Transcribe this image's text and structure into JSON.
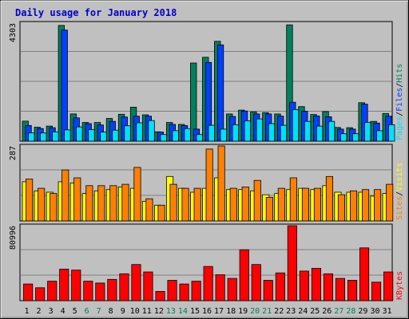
{
  "title": "Daily usage for January 2018",
  "colors": {
    "background": "#C0C0C0",
    "title": "#0000CC",
    "hits": "#00805C",
    "files": "#0040FF",
    "pages": "#00E0FF",
    "visits": "#FFFF00",
    "sites": "#FF8000",
    "kbytes": "#FF0000",
    "weekend_label": "#00805C",
    "grid": "#808080"
  },
  "chart_data": [
    {
      "type": "bar",
      "name": "hits-files-pages",
      "ymax_label": "4303",
      "ylim": [
        0,
        4303
      ],
      "right_label": [
        "Pages",
        "Files",
        "Hits"
      ],
      "days": [
        "1",
        "2",
        "3",
        "4",
        "5",
        "6",
        "7",
        "8",
        "9",
        "10",
        "11",
        "12",
        "13",
        "14",
        "15",
        "16",
        "17",
        "18",
        "19",
        "20",
        "21",
        "22",
        "23",
        "24",
        "25",
        "26",
        "27",
        "28",
        "29",
        "30",
        "31"
      ],
      "weekend_days": [
        "6",
        "7",
        "13",
        "14",
        "20",
        "21",
        "27",
        "28"
      ],
      "series": [
        {
          "name": "Hits",
          "values": [
            730,
            510,
            550,
            4220,
            990,
            680,
            680,
            830,
            980,
            1240,
            960,
            340,
            680,
            610,
            2850,
            3060,
            3640,
            990,
            1130,
            1070,
            1040,
            990,
            4240,
            1260,
            970,
            1080,
            500,
            490,
            1400,
            720,
            1010
          ]
        },
        {
          "name": "Files",
          "values": [
            570,
            460,
            490,
            4050,
            850,
            640,
            590,
            720,
            880,
            910,
            910,
            330,
            610,
            570,
            440,
            2870,
            3510,
            900,
            1100,
            990,
            990,
            910,
            1420,
            1090,
            920,
            890,
            440,
            440,
            1350,
            660,
            910
          ]
        },
        {
          "name": "Pages",
          "values": [
            300,
            300,
            340,
            410,
            520,
            420,
            330,
            400,
            560,
            670,
            750,
            240,
            380,
            460,
            240,
            580,
            440,
            600,
            740,
            810,
            640,
            580,
            1150,
            720,
            550,
            720,
            270,
            270,
            680,
            380,
            600
          ]
        }
      ]
    },
    {
      "type": "bar",
      "name": "visits-sites",
      "ymax_label": "287",
      "ylim": [
        0,
        287
      ],
      "right_label": [
        "Sites",
        "Visits"
      ],
      "days": [
        "1",
        "2",
        "3",
        "4",
        "5",
        "6",
        "7",
        "8",
        "9",
        "10",
        "11",
        "12",
        "13",
        "14",
        "15",
        "16",
        "17",
        "18",
        "19",
        "20",
        "21",
        "22",
        "23",
        "24",
        "25",
        "26",
        "27",
        "28",
        "29",
        "30",
        "31"
      ],
      "series": [
        {
          "name": "Visits",
          "values": [
            150,
            115,
            110,
            150,
            145,
            105,
            115,
            120,
            130,
            125,
            75,
            60,
            170,
            125,
            110,
            125,
            165,
            120,
            120,
            115,
            100,
            105,
            120,
            125,
            120,
            135,
            110,
            110,
            110,
            95,
            105
          ]
        },
        {
          "name": "Sites",
          "values": [
            160,
            125,
            105,
            195,
            165,
            135,
            135,
            135,
            140,
            205,
            85,
            60,
            140,
            125,
            125,
            275,
            295,
            125,
            130,
            155,
            90,
            125,
            165,
            125,
            125,
            170,
            100,
            115,
            120,
            120,
            140
          ]
        }
      ]
    },
    {
      "type": "bar",
      "name": "kbytes",
      "ymax_label": "80996",
      "ylim": [
        0,
        80996
      ],
      "right_label": [
        "KBytes"
      ],
      "days": [
        "1",
        "2",
        "3",
        "4",
        "5",
        "6",
        "7",
        "8",
        "9",
        "10",
        "11",
        "12",
        "13",
        "14",
        "15",
        "16",
        "17",
        "18",
        "19",
        "20",
        "21",
        "22",
        "23",
        "24",
        "25",
        "26",
        "27",
        "28",
        "29",
        "30",
        "31"
      ],
      "series": [
        {
          "name": "KBytes",
          "values": [
            18000,
            14000,
            21000,
            34000,
            33000,
            21000,
            19000,
            23000,
            29000,
            39000,
            31000,
            10000,
            22000,
            18000,
            21000,
            37000,
            28000,
            24000,
            55000,
            39000,
            22000,
            30000,
            81000,
            32000,
            35000,
            29000,
            24000,
            22000,
            57000,
            20000,
            31000
          ]
        }
      ]
    }
  ]
}
